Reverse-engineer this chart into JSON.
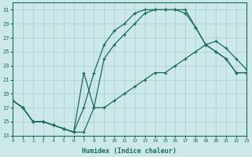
{
  "bg_color": "#cce8e8",
  "grid_color": "#aacece",
  "line_color": "#1a6b5a",
  "xlabel": "Humidex (Indice chaleur)",
  "ylim": [
    13,
    32
  ],
  "xlim": [
    0,
    23
  ],
  "yticks": [
    13,
    15,
    17,
    19,
    21,
    23,
    25,
    27,
    29,
    31
  ],
  "xticks": [
    0,
    1,
    2,
    3,
    4,
    5,
    6,
    7,
    8,
    9,
    10,
    11,
    12,
    13,
    14,
    15,
    16,
    17,
    18,
    19,
    20,
    21,
    22,
    23
  ],
  "curve1_x": [
    0,
    1,
    2,
    3,
    4,
    5,
    6,
    7,
    8,
    9,
    10,
    11,
    12,
    13,
    14,
    15,
    16,
    17,
    18,
    19,
    20,
    21,
    22,
    23
  ],
  "curve1_y": [
    18,
    17,
    15,
    15,
    14.5,
    14,
    13.5,
    13.5,
    17,
    24,
    26,
    27.5,
    29,
    30.5,
    31,
    31,
    31,
    31,
    28.5,
    26,
    25,
    24,
    22,
    22
  ],
  "curve2_x": [
    0,
    1,
    2,
    3,
    4,
    5,
    6,
    7,
    8,
    9,
    10,
    11,
    12,
    13,
    14,
    15,
    16,
    17,
    18,
    19,
    20,
    21,
    22,
    23
  ],
  "curve2_y": [
    18,
    17,
    15,
    15,
    14.5,
    14,
    13.5,
    22,
    17,
    17,
    18,
    19,
    20,
    21,
    22,
    22,
    23,
    24,
    25,
    26,
    26.5,
    25.5,
    24,
    22.5
  ],
  "curve3_x": [
    0,
    1,
    2,
    3,
    4,
    5,
    6,
    7,
    8,
    9,
    10,
    11,
    12,
    13,
    14,
    15,
    16,
    17,
    18,
    19,
    20,
    21,
    22,
    23
  ],
  "curve3_y": [
    18,
    17,
    15,
    15,
    14.5,
    14,
    13.5,
    17,
    22,
    26,
    28,
    29,
    30.5,
    31,
    31,
    31,
    31,
    30.5,
    28.5,
    26,
    25,
    24,
    22,
    22
  ]
}
